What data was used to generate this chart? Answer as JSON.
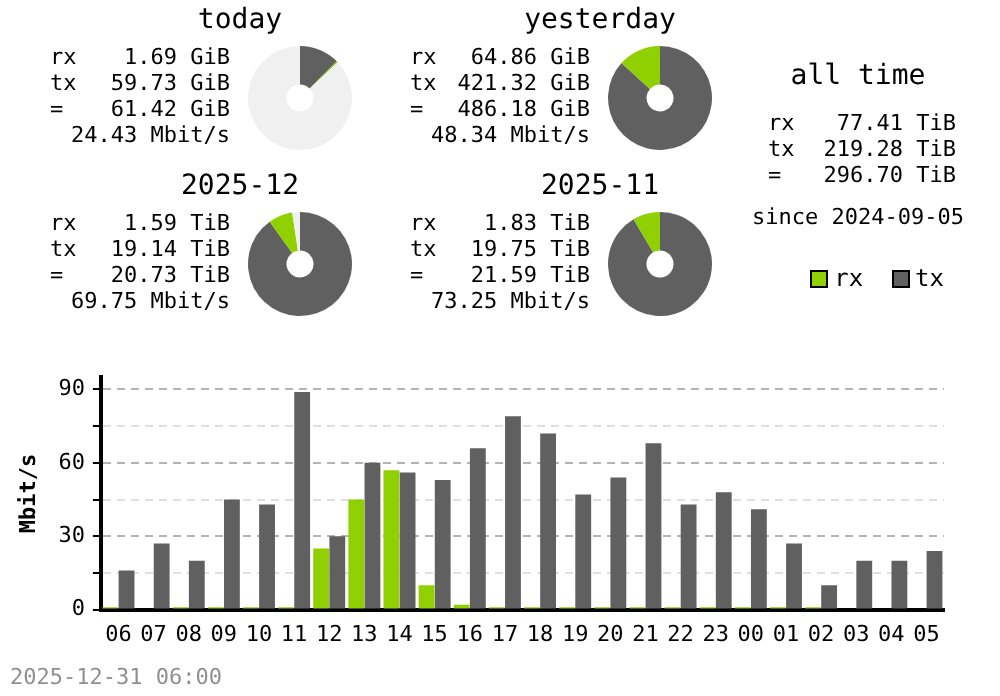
{
  "chart_data": [
    {
      "type": "donut",
      "title": "today",
      "categories": [
        null,
        null,
        null
      ],
      "values": [
        12.5,
        0.4,
        87.1
      ],
      "colors": [
        "#606060",
        "#90d000",
        "#f0f0f0"
      ],
      "annotations": [
        "rx",
        "1.69 GiB",
        "tx",
        "59.73 GiB",
        "=",
        "61.42 GiB",
        "24.43 Mbit/s"
      ]
    },
    {
      "type": "donut",
      "title": "yesterday",
      "categories": [
        null,
        null
      ],
      "values": [
        86.7,
        13.3
      ],
      "colors": [
        "#606060",
        "#90d000"
      ],
      "annotations": [
        "rx",
        "64.86 GiB",
        "tx",
        "421.32 GiB",
        "=",
        "486.18 GiB",
        "48.34 Mbit/s"
      ]
    },
    {
      "type": "other",
      "title": "all time",
      "annotations": [
        "rx",
        "77.41 TiB",
        "tx",
        "219.28 TiB",
        "=",
        "296.70 TiB",
        "since 2024-09-05"
      ]
    },
    {
      "type": "donut",
      "title": "2025-12",
      "categories": [
        null,
        null,
        null
      ],
      "values": [
        90.1,
        7.5,
        2.4
      ],
      "colors": [
        "#606060",
        "#90d000",
        "#f0f0f0"
      ],
      "annotations": [
        "rx",
        "1.59 TiB",
        "tx",
        "19.14 TiB",
        "=",
        "20.73 TiB",
        "69.75 Mbit/s"
      ]
    },
    {
      "type": "donut",
      "title": "2025-11",
      "categories": [
        null,
        null
      ],
      "values": [
        91.5,
        8.5
      ],
      "colors": [
        "#606060",
        "#90d000"
      ],
      "annotations": [
        "rx",
        "1.83 TiB",
        "tx",
        "19.75 TiB",
        "=",
        "21.59 TiB",
        "73.25 Mbit/s"
      ]
    },
    {
      "type": "bar",
      "ylabel": "Mbit/s",
      "categories": [
        "06",
        "07",
        "08",
        "09",
        "10",
        "11",
        "12",
        "13",
        "14",
        "15",
        "16",
        "17",
        "18",
        "19",
        "20",
        "21",
        "22",
        "23",
        "00",
        "01",
        "02",
        "03",
        "04",
        "05"
      ],
      "series": [
        {
          "name": "rx",
          "color": "#90d000",
          "values": [
            1,
            0,
            1,
            1,
            1,
            1,
            25,
            45,
            57,
            10,
            2,
            1,
            1,
            1,
            1,
            1,
            1,
            1,
            1,
            1,
            1,
            0,
            0,
            0
          ]
        },
        {
          "name": "tx",
          "color": "#606060",
          "values": [
            16,
            27,
            20,
            45,
            43,
            89,
            30,
            60,
            56,
            53,
            66,
            79,
            72,
            47,
            54,
            68,
            43,
            48,
            41,
            27,
            10,
            20,
            20,
            24
          ]
        }
      ],
      "ylim": [
        0,
        95
      ],
      "yticks": [
        0,
        {
          "value": 15,
          "label": null
        },
        30,
        {
          "value": 45,
          "label": null
        },
        60,
        {
          "value": 75,
          "label": null
        },
        90
      ],
      "grid": "y",
      "legend": "top right",
      "annotations": [
        "2025-12-31 06:00"
      ]
    }
  ]
}
